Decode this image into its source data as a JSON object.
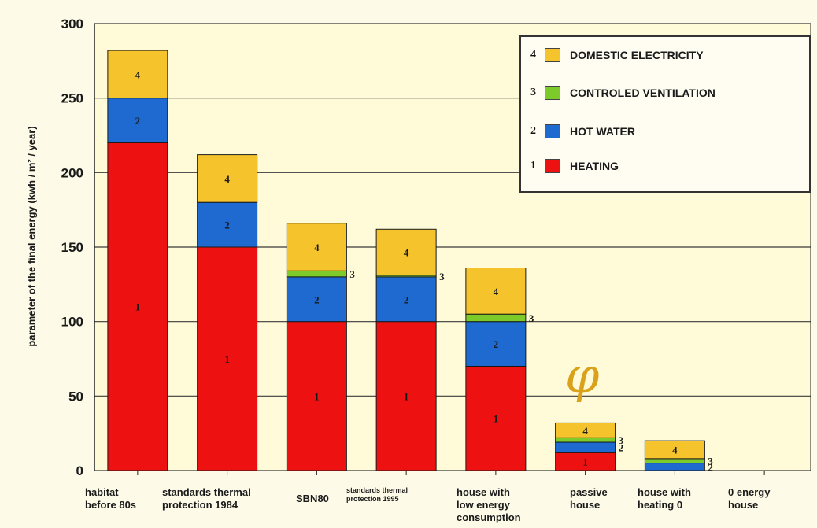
{
  "chart_data": {
    "type": "bar",
    "stacked": true,
    "ylabel": "parameter of the final energy (kwh / m² / year)",
    "ylim": [
      0,
      300
    ],
    "yticks": [
      0,
      50,
      100,
      150,
      200,
      250,
      300
    ],
    "grid": true,
    "legend_position": "top-right",
    "categories": [
      "habitat before 80s",
      "standards thermal protection 1984",
      "SBN80",
      "standards thermal protection 1995",
      "house with low energy consumption",
      "passive house",
      "house with heating 0",
      "0 energy house"
    ],
    "series": [
      {
        "name": "HEATING",
        "number": "1",
        "color": "#ee1111",
        "values": [
          220,
          150,
          100,
          100,
          70,
          12,
          0,
          0
        ]
      },
      {
        "name": "HOT WATER",
        "number": "2",
        "color": "#1e6ad0",
        "values": [
          30,
          30,
          30,
          30,
          30,
          7,
          5,
          0
        ]
      },
      {
        "name": "CONTROLED VENTILATION",
        "number": "3",
        "color": "#7dcb2a",
        "values": [
          0,
          0,
          4,
          1,
          5,
          3,
          3,
          0
        ]
      },
      {
        "name": "DOMESTIC ELECTRICITY",
        "number": "4",
        "color": "#f5c42c",
        "values": [
          32,
          32,
          32,
          31,
          31,
          10,
          12,
          0
        ]
      }
    ]
  },
  "legend_order": [
    3,
    2,
    1,
    0
  ]
}
